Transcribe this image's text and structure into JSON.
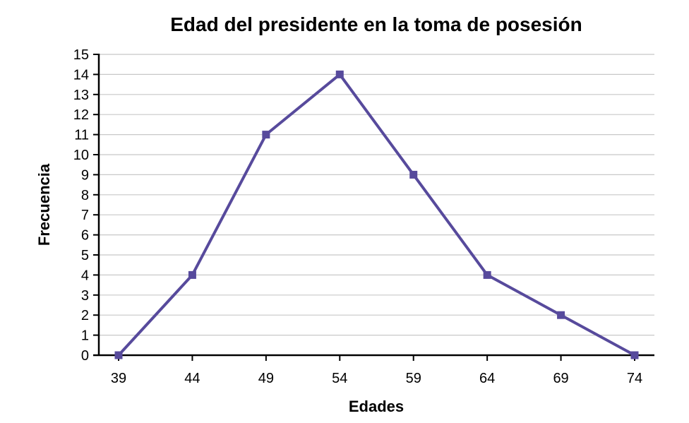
{
  "chart_data": {
    "type": "line",
    "title": "Edad del presidente en la toma de posesión",
    "xlabel": "Edades",
    "ylabel": "Frecuencia",
    "x": [
      39,
      44,
      49,
      54,
      59,
      64,
      69,
      74
    ],
    "series": [
      {
        "values": [
          0,
          4,
          11,
          14,
          9,
          4,
          2,
          0
        ]
      }
    ],
    "ylim": [
      0,
      15
    ],
    "yticks": [
      0,
      1,
      2,
      3,
      4,
      5,
      6,
      7,
      8,
      9,
      10,
      11,
      12,
      13,
      14,
      15
    ],
    "grid": true,
    "line_color": "#574a9c",
    "grid_color": "#c8c8c8",
    "axis_color": "#000000"
  }
}
